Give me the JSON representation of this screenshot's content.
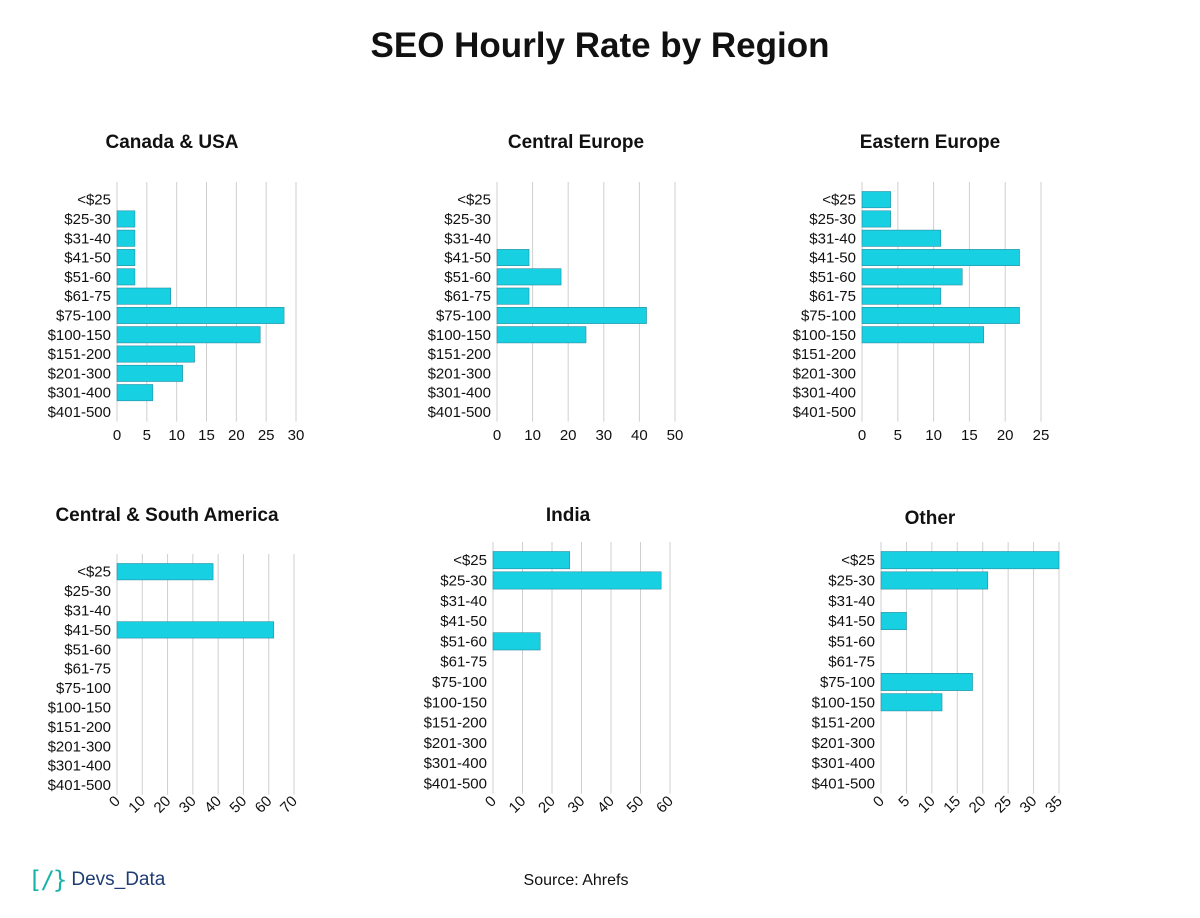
{
  "title": "SEO Hourly Rate by Region",
  "source": "Source: Ahrefs",
  "logo": {
    "mark": "[/}",
    "text": "Devs_Data"
  },
  "colors": {
    "bar": "#17d1e3",
    "grid": "#cfcfcf",
    "text": "#111111"
  },
  "chart_data": [
    {
      "type": "bar",
      "orientation": "horizontal",
      "title": "Canada & USA",
      "categories": [
        "<$25",
        "$25-30",
        "$31-40",
        "$41-50",
        "$51-60",
        "$61-75",
        "$75-100",
        "$100-150",
        "$151-200",
        "$201-300",
        "$301-400",
        "$401-500"
      ],
      "values": [
        0,
        3,
        3,
        3,
        3,
        9,
        28,
        24,
        13,
        11,
        6,
        0
      ],
      "xlim": [
        0,
        30
      ],
      "xticks": [
        0,
        5,
        10,
        15,
        20,
        25,
        30
      ],
      "tick_rotation": 0
    },
    {
      "type": "bar",
      "orientation": "horizontal",
      "title": "Central Europe",
      "categories": [
        "<$25",
        "$25-30",
        "$31-40",
        "$41-50",
        "$51-60",
        "$61-75",
        "$75-100",
        "$100-150",
        "$151-200",
        "$201-300",
        "$301-400",
        "$401-500"
      ],
      "values": [
        0,
        0,
        0,
        9,
        18,
        9,
        42,
        25,
        0,
        0,
        0,
        0
      ],
      "xlim": [
        0,
        50
      ],
      "xticks": [
        0,
        10,
        20,
        30,
        40,
        50
      ],
      "tick_rotation": 0
    },
    {
      "type": "bar",
      "orientation": "horizontal",
      "title": "Eastern Europe",
      "categories": [
        "<$25",
        "$25-30",
        "$31-40",
        "$41-50",
        "$51-60",
        "$61-75",
        "$75-100",
        "$100-150",
        "$151-200",
        "$201-300",
        "$301-400",
        "$401-500"
      ],
      "values": [
        4,
        4,
        11,
        22,
        14,
        11,
        22,
        17,
        0,
        0,
        0,
        0
      ],
      "xlim": [
        0,
        25
      ],
      "xticks": [
        0,
        5,
        10,
        15,
        20,
        25
      ],
      "tick_rotation": 0
    },
    {
      "type": "bar",
      "orientation": "horizontal",
      "title": "Central & South America",
      "categories": [
        "<$25",
        "$25-30",
        "$31-40",
        "$41-50",
        "$51-60",
        "$61-75",
        "$75-100",
        "$100-150",
        "$151-200",
        "$201-300",
        "$301-400",
        "$401-500"
      ],
      "values": [
        38,
        0,
        0,
        62,
        0,
        0,
        0,
        0,
        0,
        0,
        0,
        0
      ],
      "xlim": [
        0,
        70
      ],
      "xticks": [
        0,
        10,
        20,
        30,
        40,
        50,
        60,
        70
      ],
      "tick_rotation": 45
    },
    {
      "type": "bar",
      "orientation": "horizontal",
      "title": "India",
      "categories": [
        "<$25",
        "$25-30",
        "$31-40",
        "$41-50",
        "$51-60",
        "$61-75",
        "$75-100",
        "$100-150",
        "$151-200",
        "$201-300",
        "$301-400",
        "$401-500"
      ],
      "values": [
        26,
        57,
        0,
        0,
        16,
        0,
        0,
        0,
        0,
        0,
        0,
        0
      ],
      "xlim": [
        0,
        60
      ],
      "xticks": [
        0,
        10,
        20,
        30,
        40,
        50,
        60
      ],
      "tick_rotation": 45
    },
    {
      "type": "bar",
      "orientation": "horizontal",
      "title": "Other",
      "categories": [
        "<$25",
        "$25-30",
        "$31-40",
        "$41-50",
        "$51-60",
        "$61-75",
        "$75-100",
        "$100-150",
        "$151-200",
        "$201-300",
        "$301-400",
        "$401-500"
      ],
      "values": [
        35,
        21,
        0,
        5,
        0,
        0,
        18,
        12,
        0,
        0,
        0,
        0
      ],
      "xlim": [
        0,
        35
      ],
      "xticks": [
        0,
        5,
        10,
        15,
        20,
        25,
        30,
        35
      ],
      "tick_rotation": 45
    }
  ]
}
